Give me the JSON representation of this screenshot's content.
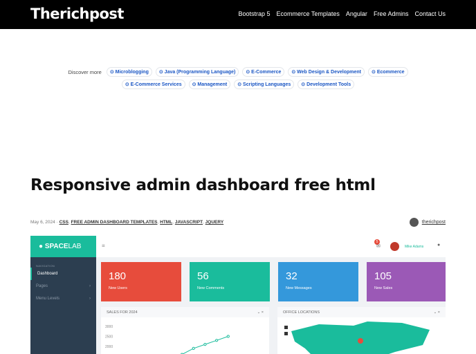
{
  "header": {
    "logo": "Therichpost",
    "nav": [
      "Bootstrap 5",
      "Ecommerce Templates",
      "Angular",
      "Free Admins",
      "Contact Us"
    ]
  },
  "discover": {
    "label": "Discover more",
    "row1": [
      "Microblogging",
      "Java (Programming Language)",
      "E-Commerce",
      "Web Design & Development",
      "Ecommerce"
    ],
    "row2": [
      "E-Commerce Services",
      "Management",
      "Scripting Languages",
      "Development Tools"
    ]
  },
  "article": {
    "title": "Responsive admin dashboard free html",
    "date": "May 6, 2024 ·",
    "tags": [
      "CSS",
      "FREE ADMIN DASHBOARD TEMPLATES",
      "HTML",
      "JAVASCRIPT",
      "JQUERY"
    ],
    "author": "therichpost"
  },
  "dashboard": {
    "brand_bold": "SPACE",
    "brand_light": "LAB",
    "badge": "5",
    "user": "Mike Adams",
    "nav_header": "NAVIGATION",
    "nav": [
      "Dashboard",
      "Pages",
      "Menu Levels"
    ],
    "cards": [
      {
        "value": "180",
        "label": "New Users",
        "color": "#e74c3c"
      },
      {
        "value": "56",
        "label": "New Comments",
        "color": "#1abc9c"
      },
      {
        "value": "32",
        "label": "New Messages",
        "color": "#3498db"
      },
      {
        "value": "105",
        "label": "New Sales",
        "color": "#9b59b6"
      }
    ],
    "sales_title": "SALES FOR 2024",
    "map_title": "OFFICE LOCATIONS",
    "y_ticks": [
      "3000",
      "2500",
      "2000"
    ],
    "sales_values": [
      1600,
      1900,
      2100,
      2300,
      2500
    ]
  }
}
